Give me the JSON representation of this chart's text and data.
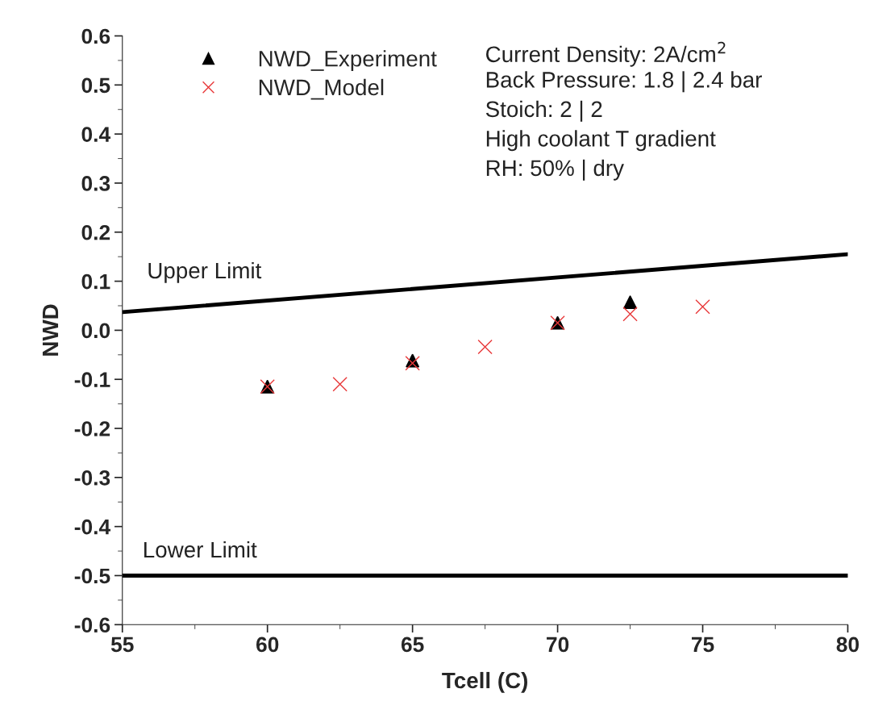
{
  "chart_data": {
    "type": "scatter",
    "xlabel": "Tcell (C)",
    "ylabel": "NWD",
    "xlim": [
      55,
      80
    ],
    "xticks": [
      55,
      60,
      65,
      70,
      75,
      80
    ],
    "ylim": [
      -0.6,
      0.6
    ],
    "yticks": [
      {
        "value": -0.6,
        "label": "-0.6"
      },
      {
        "value": -0.5,
        "label": "-0.5"
      },
      {
        "value": -0.4,
        "label": "-0.4"
      },
      {
        "value": -0.3,
        "label": "-0.3"
      },
      {
        "value": -0.2,
        "label": "-0.2"
      },
      {
        "value": -0.1,
        "label": "-0.1"
      },
      {
        "value": 0.0,
        "label": "0.0"
      },
      {
        "value": 0.1,
        "label": "0.1"
      },
      {
        "value": 0.2,
        "label": "0.2"
      },
      {
        "value": 0.3,
        "label": "0.3"
      },
      {
        "value": 0.4,
        "label": "0.4"
      },
      {
        "value": 0.5,
        "label": "0.5"
      },
      {
        "value": 0.6,
        "label": "0.6"
      }
    ],
    "grid": false,
    "legend": "top left",
    "series": [
      {
        "name": "NWD_Experiment",
        "marker": "triangle",
        "color": "#000000",
        "x": [
          60,
          65,
          70,
          72.5
        ],
        "values": [
          -0.115,
          -0.062,
          0.015,
          0.057
        ]
      },
      {
        "name": "NWD_Model",
        "marker": "cross",
        "color": "#e8393a",
        "x": [
          60,
          62.5,
          65,
          67.5,
          70,
          72.5,
          75
        ],
        "values": [
          -0.115,
          -0.11,
          -0.067,
          -0.034,
          0.015,
          0.033,
          0.048
        ]
      },
      {
        "name": "Upper Limit",
        "type": "line",
        "color": "#000000",
        "x": [
          55,
          80
        ],
        "values": [
          0.037,
          0.155
        ]
      }
    ],
    "ref_lines": [
      {
        "axis": "y",
        "value": -0.5,
        "label": "Lower Limit",
        "color": "#000000"
      }
    ],
    "annotations": [
      "Current Density: 2A/cm$^{2}$",
      "Back Pressure: 1.8 | 2.4 bar",
      "Stoich: 2 | 2",
      "High coolant T gradient",
      "RH: 50% | dry"
    ]
  }
}
